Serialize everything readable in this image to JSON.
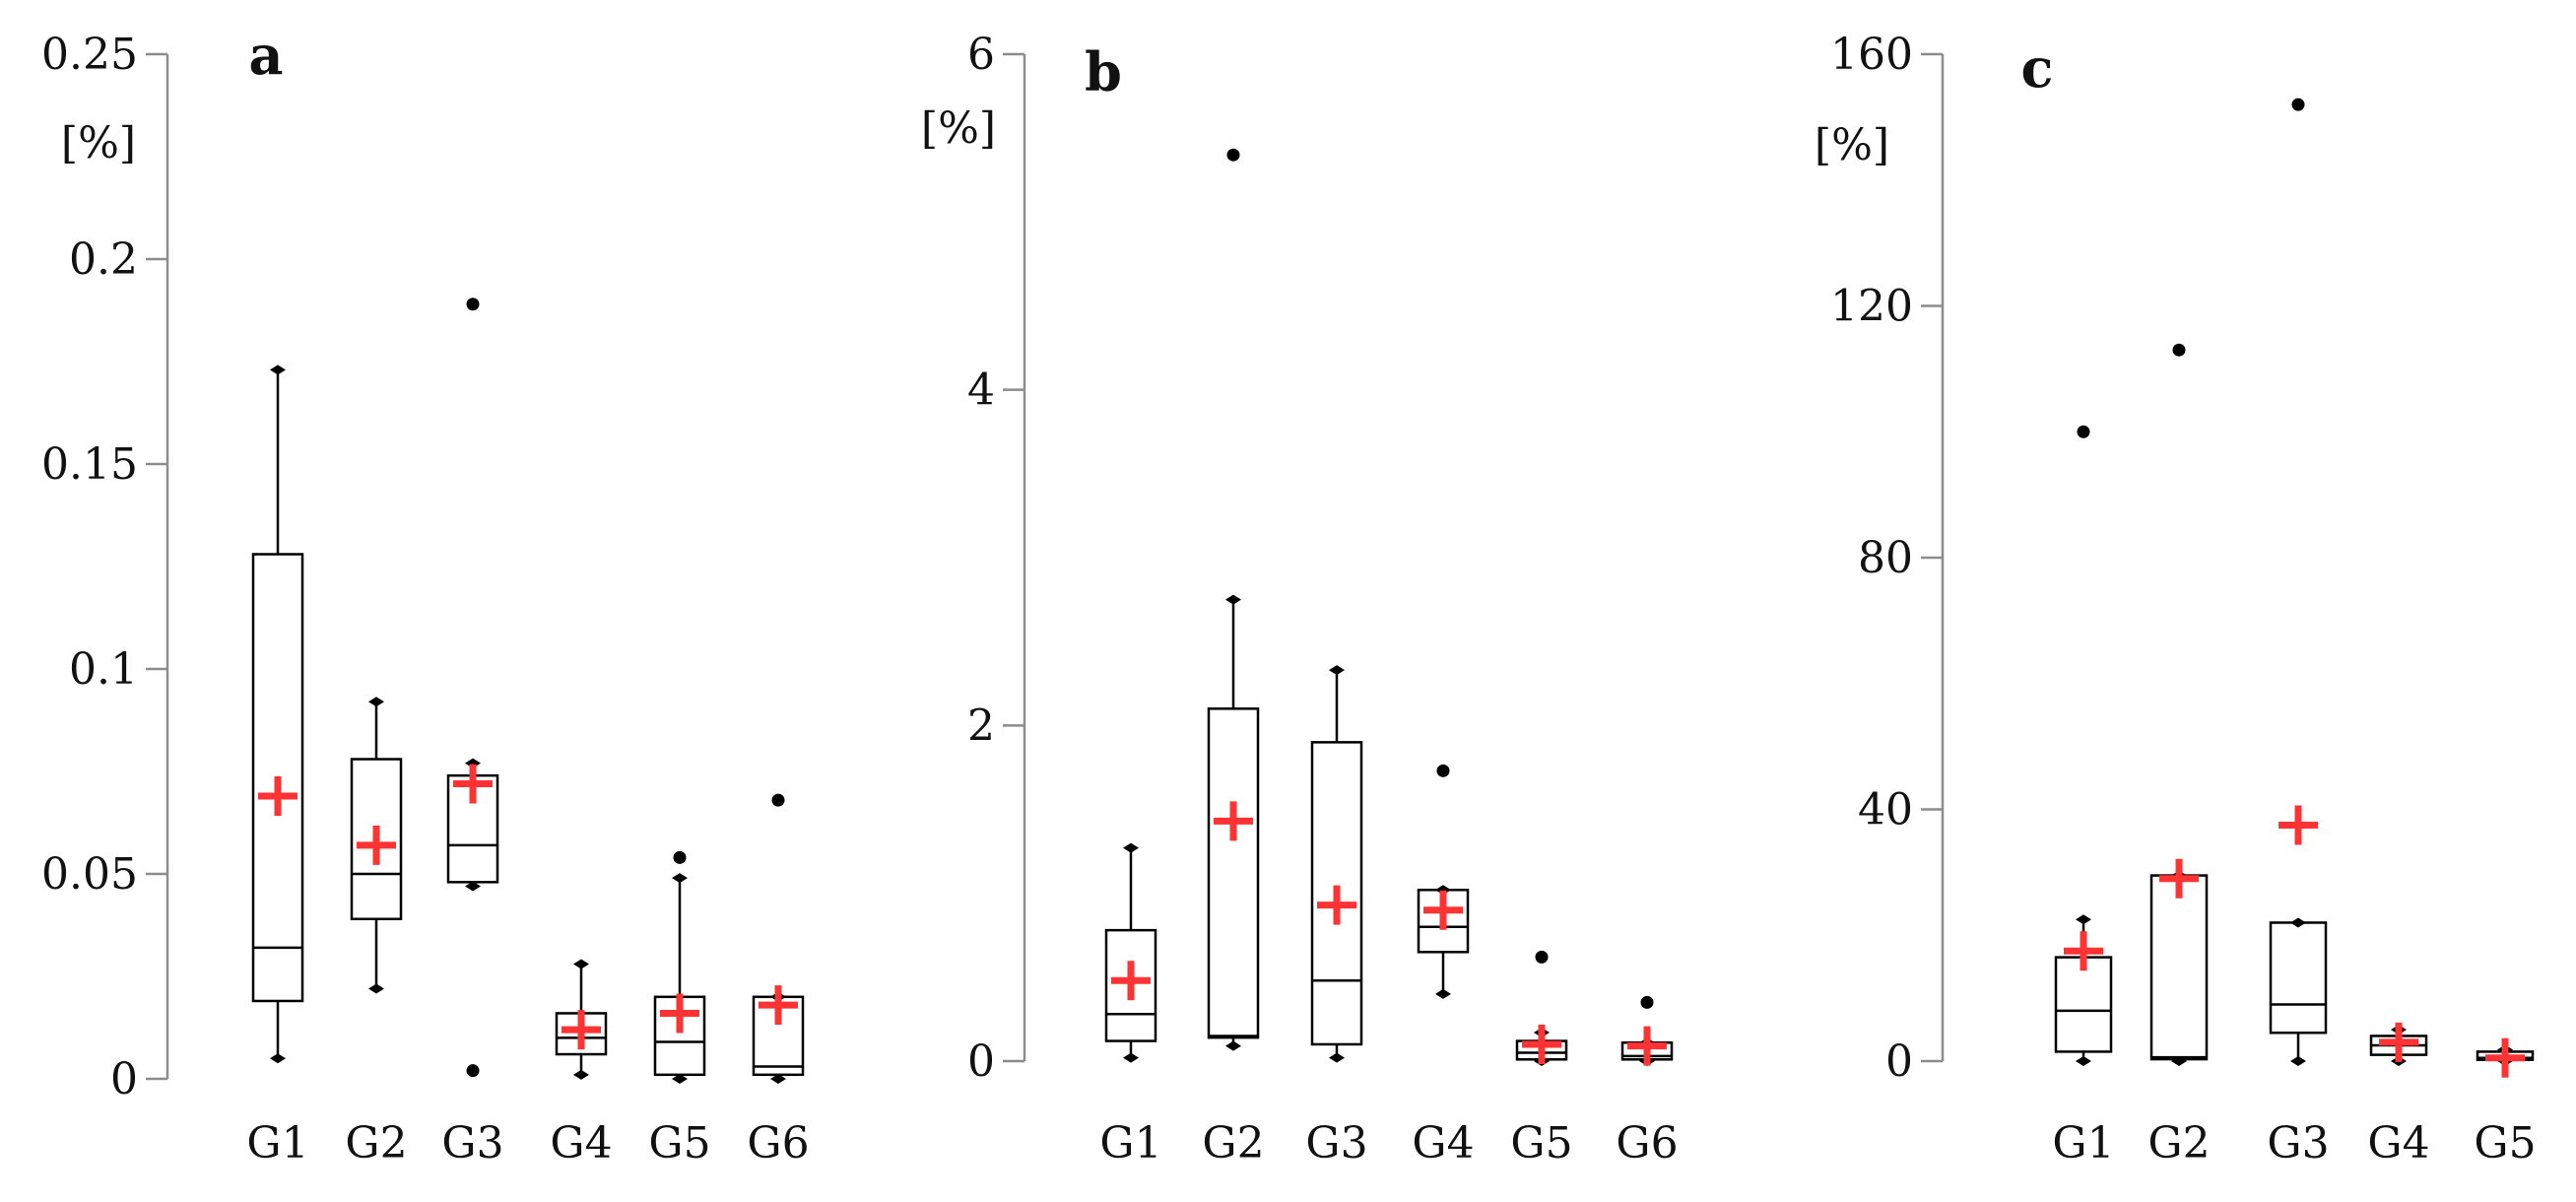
{
  "colors": {
    "axis": "#8c8c8c",
    "box": "#000000",
    "mean": "#ff3333",
    "outlier": "#000000"
  },
  "chart_data": [
    {
      "type": "box",
      "panel_label": "a",
      "ylabel": "[%]",
      "ylim": [
        0,
        0.25
      ],
      "yticks": [
        0,
        0.05,
        0.1,
        0.15,
        0.2,
        0.25
      ],
      "ytick_labels": [
        "0",
        "0.05",
        "0.1",
        "0.15",
        "0.2",
        "0.25"
      ],
      "categories": [
        "G1",
        "G2",
        "G3",
        "G4",
        "G5",
        "G6"
      ],
      "boxes": [
        {
          "min": 0.005,
          "q1": 0.019,
          "median": 0.032,
          "q3": 0.128,
          "max": 0.173,
          "mean": 0.069,
          "outliers": []
        },
        {
          "min": 0.022,
          "q1": 0.039,
          "median": 0.05,
          "q3": 0.078,
          "max": 0.092,
          "mean": 0.057,
          "outliers": []
        },
        {
          "min": 0.047,
          "q1": 0.048,
          "median": 0.057,
          "q3": 0.074,
          "max": 0.077,
          "mean": 0.072,
          "outliers": [
            0.189,
            0.002
          ]
        },
        {
          "min": 0.001,
          "q1": 0.006,
          "median": 0.01,
          "q3": 0.016,
          "max": 0.028,
          "mean": 0.012,
          "outliers": []
        },
        {
          "min": 0.0,
          "q1": 0.001,
          "median": 0.009,
          "q3": 0.02,
          "max": 0.049,
          "mean": 0.016,
          "outliers": [
            0.054
          ]
        },
        {
          "min": 0.0,
          "q1": 0.001,
          "median": 0.003,
          "q3": 0.02,
          "max": 0.02,
          "mean": 0.018,
          "outliers": [
            0.068
          ]
        }
      ]
    },
    {
      "type": "box",
      "panel_label": "b",
      "ylabel": "[%]",
      "ylim": [
        0,
        6
      ],
      "yticks": [
        0,
        2,
        4,
        6
      ],
      "ytick_labels": [
        "0",
        "2",
        "4",
        "6"
      ],
      "categories": [
        "G1",
        "G2",
        "G3",
        "G4",
        "G5",
        "G6"
      ],
      "boxes": [
        {
          "min": 0.02,
          "q1": 0.12,
          "median": 0.28,
          "q3": 0.78,
          "max": 1.27,
          "mean": 0.48,
          "outliers": []
        },
        {
          "min": 0.09,
          "q1": 0.14,
          "median": 0.15,
          "q3": 2.1,
          "max": 2.75,
          "mean": 1.43,
          "outliers": [
            5.4
          ]
        },
        {
          "min": 0.02,
          "q1": 0.1,
          "median": 0.48,
          "q3": 1.9,
          "max": 2.33,
          "mean": 0.93,
          "outliers": []
        },
        {
          "min": 0.4,
          "q1": 0.65,
          "median": 0.8,
          "q3": 1.02,
          "max": 1.02,
          "mean": 0.9,
          "outliers": [
            1.73
          ]
        },
        {
          "min": 0.0,
          "q1": 0.01,
          "median": 0.05,
          "q3": 0.12,
          "max": 0.17,
          "mean": 0.1,
          "outliers": [
            0.62
          ]
        },
        {
          "min": 0.0,
          "q1": 0.01,
          "median": 0.03,
          "q3": 0.11,
          "max": 0.11,
          "mean": 0.09,
          "outliers": [
            0.35
          ]
        }
      ]
    },
    {
      "type": "box",
      "panel_label": "c",
      "ylabel": "[%]",
      "ylim": [
        0,
        160
      ],
      "yticks": [
        0,
        40,
        80,
        120,
        160
      ],
      "ytick_labels": [
        "0",
        "40",
        "80",
        "120",
        "160"
      ],
      "categories": [
        "G1",
        "G2",
        "G3",
        "G4",
        "G5"
      ],
      "boxes": [
        {
          "min": 0.0,
          "q1": 1.5,
          "median": 8.0,
          "q3": 16.5,
          "max": 22.5,
          "mean": 17.5,
          "outliers": [
            100
          ]
        },
        {
          "min": 0.0,
          "q1": 0.3,
          "median": 0.6,
          "q3": 29.5,
          "max": 29.5,
          "mean": 29.0,
          "outliers": [
            113
          ]
        },
        {
          "min": 0.0,
          "q1": 4.5,
          "median": 9.0,
          "q3": 22.0,
          "max": 22.0,
          "mean": 37.5,
          "outliers": [
            152
          ]
        },
        {
          "min": 0.0,
          "q1": 1.0,
          "median": 2.5,
          "q3": 4.0,
          "max": 5.0,
          "mean": 3.0,
          "outliers": []
        },
        {
          "min": 0.0,
          "q1": 0.2,
          "median": 0.5,
          "q3": 1.5,
          "max": 1.8,
          "mean": 0.5,
          "outliers": []
        }
      ]
    }
  ]
}
